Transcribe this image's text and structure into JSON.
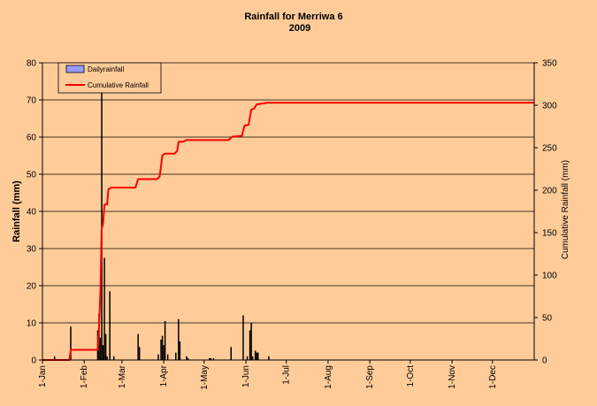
{
  "chart_data": {
    "type": "bar+line",
    "title": "Rainfall  for Merriwa 6",
    "subtitle": "2009",
    "ylabel": "Rainfall (mm)",
    "y2label": "Cumulative Rainfall (mm)",
    "xlabel": "",
    "ylim": [
      0,
      80
    ],
    "yticks": [
      0,
      10,
      20,
      30,
      40,
      50,
      60,
      70,
      80
    ],
    "y2lim": [
      0,
      350
    ],
    "y2ticks": [
      0,
      50,
      100,
      150,
      200,
      250,
      300,
      350
    ],
    "xlim_day": [
      1,
      366
    ],
    "xticks": [
      {
        "label": "1-Jan",
        "day": 1
      },
      {
        "label": "1-Feb",
        "day": 32
      },
      {
        "label": "1-Mar",
        "day": 60
      },
      {
        "label": "1-Apr",
        "day": 91
      },
      {
        "label": "1-May",
        "day": 121
      },
      {
        "label": "1-Jun",
        "day": 152
      },
      {
        "label": "1-Jul",
        "day": 182
      },
      {
        "label": "1-Aug",
        "day": 213
      },
      {
        "label": "1-Sep",
        "day": 244
      },
      {
        "label": "1-Oct",
        "day": 274
      },
      {
        "label": "1-Nov",
        "day": 305
      },
      {
        "label": "1-Dec",
        "day": 335
      }
    ],
    "grid": "horizontal",
    "legend_position": "top-left",
    "colors": {
      "background": "#FFCC99",
      "daily_bar": "#000000",
      "legend_bar_fill": "#9999FF",
      "cumulative_line": "#FF0000",
      "grid": "#000000"
    },
    "series": [
      {
        "name": "Dailyrainfall",
        "type": "bar",
        "axis": "left",
        "points": [
          {
            "day": 10,
            "value": 1
          },
          {
            "day": 22,
            "value": 9
          },
          {
            "day": 42,
            "value": 8
          },
          {
            "day": 43,
            "value": 12.5
          },
          {
            "day": 44,
            "value": 6
          },
          {
            "day": 45,
            "value": 72
          },
          {
            "day": 46,
            "value": 4
          },
          {
            "day": 47,
            "value": 27.5
          },
          {
            "day": 48,
            "value": 7
          },
          {
            "day": 49,
            "value": 1
          },
          {
            "day": 51,
            "value": 18.5
          },
          {
            "day": 54,
            "value": 1
          },
          {
            "day": 72,
            "value": 7
          },
          {
            "day": 73,
            "value": 3.5
          },
          {
            "day": 87,
            "value": 1.5
          },
          {
            "day": 89,
            "value": 5.5
          },
          {
            "day": 90,
            "value": 6.5
          },
          {
            "day": 91,
            "value": 4
          },
          {
            "day": 92,
            "value": 10.5
          },
          {
            "day": 94,
            "value": 1.5
          },
          {
            "day": 100,
            "value": 2
          },
          {
            "day": 102,
            "value": 11
          },
          {
            "day": 103,
            "value": 5
          },
          {
            "day": 108,
            "value": 1
          },
          {
            "day": 109,
            "value": 0.5
          },
          {
            "day": 125,
            "value": 0.5
          },
          {
            "day": 126,
            "value": 0.5
          },
          {
            "day": 128,
            "value": 0.5
          },
          {
            "day": 141,
            "value": 3.5
          },
          {
            "day": 150,
            "value": 12
          },
          {
            "day": 153,
            "value": 1
          },
          {
            "day": 155,
            "value": 8
          },
          {
            "day": 156,
            "value": 10
          },
          {
            "day": 157,
            "value": 1
          },
          {
            "day": 159,
            "value": 2.5
          },
          {
            "day": 160,
            "value": 2
          },
          {
            "day": 161,
            "value": 2
          },
          {
            "day": 169,
            "value": 1
          }
        ]
      },
      {
        "name": "Cumulative Rainfall",
        "type": "line",
        "axis": "right",
        "points": [
          {
            "day": 1,
            "value": 0
          },
          {
            "day": 21,
            "value": 0
          },
          {
            "day": 22,
            "value": 12
          },
          {
            "day": 42,
            "value": 12
          },
          {
            "day": 43,
            "value": 40
          },
          {
            "day": 44,
            "value": 80
          },
          {
            "day": 45,
            "value": 155
          },
          {
            "day": 46,
            "value": 160
          },
          {
            "day": 47,
            "value": 183
          },
          {
            "day": 49,
            "value": 183
          },
          {
            "day": 50,
            "value": 201
          },
          {
            "day": 52,
            "value": 203
          },
          {
            "day": 70,
            "value": 203
          },
          {
            "day": 72,
            "value": 213
          },
          {
            "day": 86,
            "value": 213
          },
          {
            "day": 88,
            "value": 216
          },
          {
            "day": 89,
            "value": 228
          },
          {
            "day": 90,
            "value": 241
          },
          {
            "day": 92,
            "value": 243
          },
          {
            "day": 99,
            "value": 243
          },
          {
            "day": 101,
            "value": 246
          },
          {
            "day": 102,
            "value": 257
          },
          {
            "day": 105,
            "value": 257
          },
          {
            "day": 108,
            "value": 259
          },
          {
            "day": 139,
            "value": 259
          },
          {
            "day": 142,
            "value": 263
          },
          {
            "day": 149,
            "value": 264
          },
          {
            "day": 151,
            "value": 276
          },
          {
            "day": 154,
            "value": 277
          },
          {
            "day": 156,
            "value": 295
          },
          {
            "day": 158,
            "value": 296
          },
          {
            "day": 160,
            "value": 301
          },
          {
            "day": 164,
            "value": 302
          },
          {
            "day": 168,
            "value": 303
          },
          {
            "day": 366,
            "value": 303
          }
        ]
      }
    ]
  }
}
